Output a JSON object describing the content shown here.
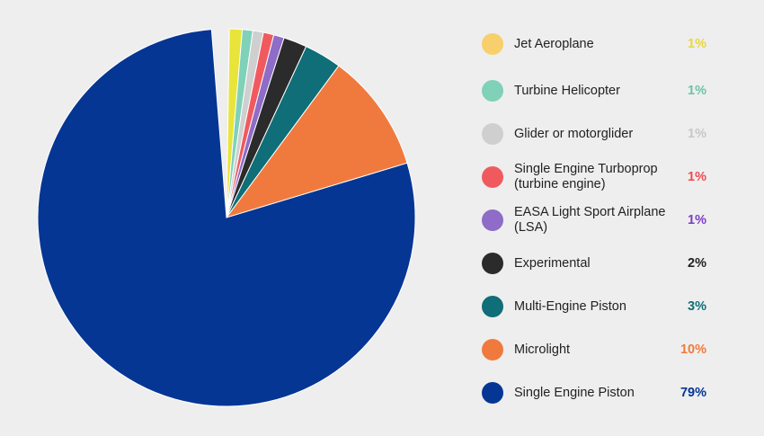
{
  "chart_data": {
    "type": "pie",
    "slices": [
      {
        "label": "Jet Aeroplane",
        "value": 1,
        "display": "1%",
        "color": "#f7d06b",
        "textColor": "#e8d83a"
      },
      {
        "label": "Turbine Helicopter",
        "value": 1,
        "display": "1%",
        "color": "#7fd1b8",
        "textColor": "#6cc3a8"
      },
      {
        "label": "Glider or motorglider",
        "value": 1,
        "display": "1%",
        "color": "#cfcfcf",
        "textColor": "#c8c8c8"
      },
      {
        "label": "Single Engine Turboprop (turbine engine)",
        "value": 1,
        "display": "1%",
        "color": "#f05a5f",
        "textColor": "#ee4b52"
      },
      {
        "label": "EASA Light Sport Airplane (LSA)",
        "value": 1,
        "display": "1%",
        "color": "#8e6cc7",
        "textColor": "#7b3fc2"
      },
      {
        "label": "Experimental",
        "value": 2,
        "display": "2%",
        "color": "#2b2b2b",
        "textColor": "#222222"
      },
      {
        "label": "Multi-Engine Piston",
        "value": 3,
        "display": "3%",
        "color": "#0f6e77",
        "textColor": "#0f6e77"
      },
      {
        "label": "Microlight",
        "value": 10,
        "display": "10%",
        "color": "#f07a3d",
        "textColor": "#f07a3d"
      },
      {
        "label": "Single Engine Piston",
        "value": 79,
        "display": "79%",
        "color": "#063694",
        "textColor": "#063694"
      }
    ],
    "pie_slices_clockwise_from_top": [
      {
        "label": "Jet Aeroplane",
        "value": 1.1,
        "color": "#e9e43a"
      },
      {
        "label": "Turbine Helicopter",
        "value": 0.9,
        "color": "#7fd1b8"
      },
      {
        "label": "Glider or motorglider",
        "value": 0.9,
        "color": "#cfcfcf"
      },
      {
        "label": "Single Engine Turboprop (turbine engine)",
        "value": 0.9,
        "color": "#f05a5f"
      },
      {
        "label": "EASA Light Sport Airplane (LSA)",
        "value": 0.9,
        "color": "#8e6cc7"
      },
      {
        "label": "Experimental",
        "value": 2.0,
        "color": "#2b2b2b"
      },
      {
        "label": "Multi-Engine Piston",
        "value": 3.2,
        "color": "#0f6e77"
      },
      {
        "label": "Microlight",
        "value": 10.2,
        "color": "#f07a3d"
      },
      {
        "label": "Single Engine Piston",
        "value": 78.4,
        "color": "#063694"
      }
    ],
    "gap_value": 1.5,
    "legend_position": "right"
  }
}
